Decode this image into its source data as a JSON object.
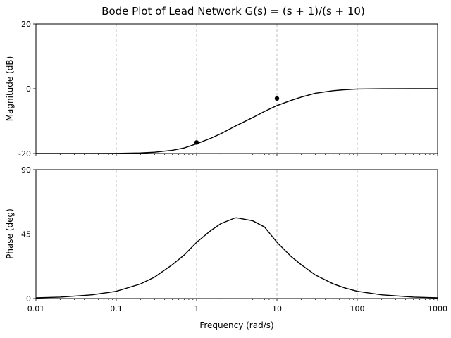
{
  "chart_data": {
    "type": "line",
    "title": "Bode Plot of Lead Network G(s) = (s + 1)/(s + 10)",
    "xlabel": "Frequency (rad/s)",
    "xscale": "log",
    "xlim": [
      0.01,
      1000
    ],
    "x_ticks": [
      0.01,
      0.1,
      1,
      10,
      100,
      1000
    ],
    "x_tick_labels": [
      "0.01",
      "0.1",
      "1",
      "10",
      "100",
      "1000"
    ],
    "grid": "vertical dashed at decades",
    "panels": [
      {
        "ylabel": "Magnitude (dB)",
        "ylim": [
          -20,
          20
        ],
        "y_ticks": [
          -20,
          0,
          20
        ],
        "y_tick_labels": [
          "-20",
          "0",
          "20"
        ],
        "series": [
          {
            "x": [
              0.01,
              0.02,
              0.05,
              0.1,
              0.2,
              0.3,
              0.5,
              0.7,
              1,
              1.5,
              2,
              3,
              5,
              7,
              10,
              15,
              20,
              30,
              50,
              70,
              100,
              200,
              500,
              1000
            ],
            "values": [
              -20.0,
              -20.0,
              -19.99,
              -19.96,
              -19.83,
              -19.6,
              -19.0,
              -18.3,
              -17.0,
              -15.3,
              -13.9,
              -11.6,
              -8.9,
              -7.0,
              -5.2,
              -3.6,
              -2.6,
              -1.4,
              -0.6,
              -0.3,
              -0.1,
              -0.02,
              0.0,
              0.0
            ]
          }
        ],
        "markers": [
          {
            "x": 1,
            "y": -16.6
          },
          {
            "x": 10,
            "y": -3.0
          }
        ]
      },
      {
        "ylabel": "Phase (deg)",
        "ylim": [
          0,
          90
        ],
        "y_ticks": [
          0,
          45,
          90
        ],
        "y_tick_labels": [
          "0",
          "45",
          "90"
        ],
        "series": [
          {
            "x": [
              0.01,
              0.02,
              0.05,
              0.1,
              0.2,
              0.3,
              0.5,
              0.7,
              1,
              1.5,
              2,
              3,
              3.16,
              5,
              7,
              10,
              15,
              20,
              30,
              50,
              70,
              100,
              200,
              500,
              1000
            ],
            "values": [
              0.5,
              1.0,
              2.6,
              5.1,
              10.2,
              15.0,
              23.7,
              30.4,
              39.3,
              47.5,
              52.3,
              56.3,
              56.4,
              54.3,
              50.0,
              39.3,
              29.4,
              23.7,
              16.5,
              10.3,
              7.4,
              5.1,
              2.6,
              1.0,
              0.5
            ]
          }
        ]
      }
    ]
  }
}
